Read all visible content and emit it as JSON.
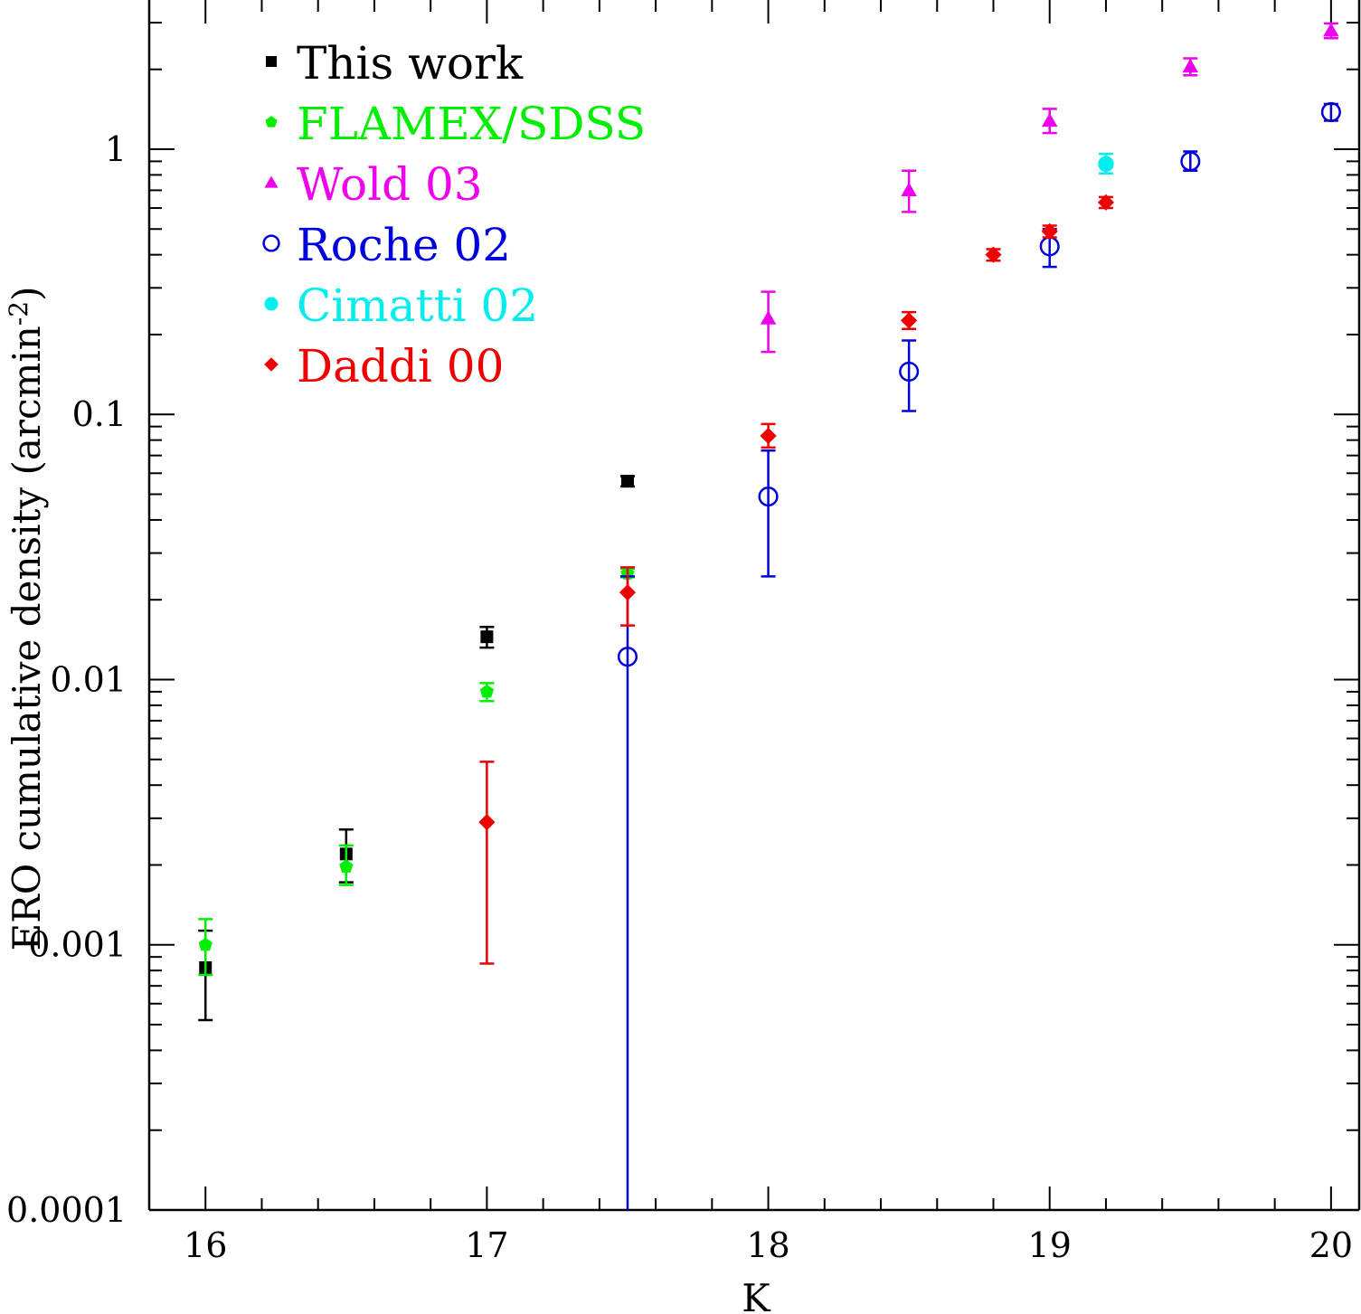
{
  "chart_data": {
    "type": "scatter",
    "xlabel": "K",
    "ylabel": "ERO cumulative density (arcmin",
    "ylabel_exponent": "-2",
    "ylabel_close": ")",
    "x_scale": "linear",
    "y_scale": "log",
    "xlim": [
      15.8,
      20.1
    ],
    "ylim": [
      0.0001,
      5.2
    ],
    "x_ticks": [
      {
        "value": 16,
        "label": "16"
      },
      {
        "value": 17,
        "label": "17"
      },
      {
        "value": 18,
        "label": "18"
      },
      {
        "value": 19,
        "label": "19"
      },
      {
        "value": 20,
        "label": "20"
      }
    ],
    "y_ticks": [
      {
        "value": 0.0001,
        "label": "0.0001"
      },
      {
        "value": 0.001,
        "label": "0.001"
      },
      {
        "value": 0.01,
        "label": "0.01"
      },
      {
        "value": 0.1,
        "label": "0.1"
      },
      {
        "value": 1,
        "label": "1"
      }
    ],
    "grid": false,
    "legend_position": "top-left",
    "series": [
      {
        "name": "This work",
        "color": "#000000",
        "marker": "square",
        "points": [
          {
            "x": 16.0,
            "y": 0.00082,
            "ylo": 0.00052,
            "yhi": 0.00113
          },
          {
            "x": 16.5,
            "y": 0.0022,
            "ylo": 0.00172,
            "yhi": 0.00272
          },
          {
            "x": 17.0,
            "y": 0.0145,
            "ylo": 0.0132,
            "yhi": 0.0158
          },
          {
            "x": 17.5,
            "y": 0.056,
            "ylo": 0.0535,
            "yhi": 0.0585
          }
        ]
      },
      {
        "name": "FLAMEX/SDSS",
        "color": "#00ee00",
        "marker": "pentagon",
        "points": [
          {
            "x": 16.0,
            "y": 0.001,
            "ylo": 0.00077,
            "yhi": 0.00125
          },
          {
            "x": 16.5,
            "y": 0.00197,
            "ylo": 0.00168,
            "yhi": 0.00237
          },
          {
            "x": 17.0,
            "y": 0.009,
            "ylo": 0.0083,
            "yhi": 0.0097
          },
          {
            "x": 17.5,
            "y": 0.0251,
            "ylo": 0.0243,
            "yhi": 0.0262
          }
        ]
      },
      {
        "name": "Wold 03",
        "color": "#ee00ee",
        "marker": "triangle",
        "points": [
          {
            "x": 18.0,
            "y": 0.23,
            "ylo": 0.172,
            "yhi": 0.29
          },
          {
            "x": 18.5,
            "y": 0.7,
            "ylo": 0.58,
            "yhi": 0.83
          },
          {
            "x": 19.0,
            "y": 1.28,
            "ylo": 1.15,
            "yhi": 1.42
          },
          {
            "x": 19.5,
            "y": 2.05,
            "ylo": 1.9,
            "yhi": 2.2
          },
          {
            "x": 20.0,
            "y": 2.8,
            "ylo": 2.62,
            "yhi": 2.98
          }
        ]
      },
      {
        "name": "Roche 02",
        "color": "#0000dd",
        "marker": "circle-open",
        "points": [
          {
            "x": 17.5,
            "y": 0.0122,
            "ylo": 0.0001,
            "yhi": 0.0245
          },
          {
            "x": 18.0,
            "y": 0.049,
            "ylo": 0.0245,
            "yhi": 0.073
          },
          {
            "x": 18.5,
            "y": 0.145,
            "ylo": 0.103,
            "yhi": 0.19
          },
          {
            "x": 19.0,
            "y": 0.43,
            "ylo": 0.36,
            "yhi": 0.5
          },
          {
            "x": 19.5,
            "y": 0.9,
            "ylo": 0.83,
            "yhi": 0.98
          },
          {
            "x": 20.0,
            "y": 1.38,
            "ylo": 1.28,
            "yhi": 1.48
          }
        ]
      },
      {
        "name": "Cimatti 02",
        "color": "#00eeee",
        "marker": "circle-filled",
        "points": [
          {
            "x": 19.2,
            "y": 0.88,
            "ylo": 0.81,
            "yhi": 0.96
          }
        ]
      },
      {
        "name": "Daddi 00",
        "color": "#ee0000",
        "marker": "diamond",
        "points": [
          {
            "x": 17.0,
            "y": 0.0029,
            "ylo": 0.00085,
            "yhi": 0.0049
          },
          {
            "x": 17.5,
            "y": 0.0213,
            "ylo": 0.016,
            "yhi": 0.0265
          },
          {
            "x": 18.0,
            "y": 0.083,
            "ylo": 0.075,
            "yhi": 0.092
          },
          {
            "x": 18.5,
            "y": 0.226,
            "ylo": 0.21,
            "yhi": 0.243
          },
          {
            "x": 18.8,
            "y": 0.4,
            "ylo": 0.38,
            "yhi": 0.42
          },
          {
            "x": 19.0,
            "y": 0.49,
            "ylo": 0.465,
            "yhi": 0.515
          },
          {
            "x": 19.2,
            "y": 0.63,
            "ylo": 0.6,
            "yhi": 0.66
          }
        ]
      }
    ]
  }
}
